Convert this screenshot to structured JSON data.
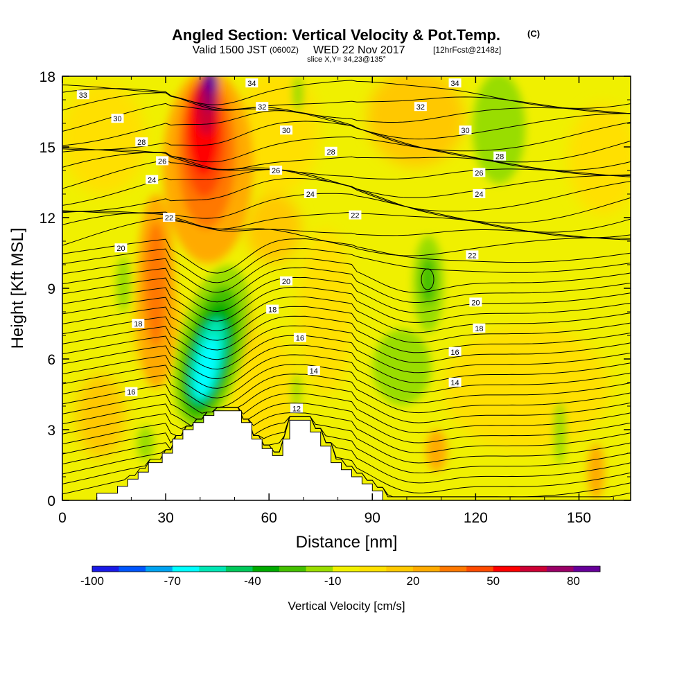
{
  "header": {
    "title": "Angled Section: Vertical Velocity & Pot.Temp.",
    "copyright": "(C)",
    "valid_prefix": "Valid 1500 JST",
    "utc": "(0600Z)",
    "date": "WED 22 Nov 2017",
    "forecast": "[12hrFcst@2148z]",
    "slice": "slice X,Y= 34,23@135°"
  },
  "chart_data": {
    "type": "heatmap",
    "title": "Angled Section: Vertical Velocity & Pot.Temp.",
    "xlabel": "Distance [nm]",
    "ylabel": "Height [Kft MSL]",
    "xlim": [
      0,
      165
    ],
    "ylim": [
      0,
      18
    ],
    "x_ticks": [
      "0",
      "30",
      "60",
      "90",
      "120",
      "150"
    ],
    "y_ticks": [
      "0",
      "3",
      "6",
      "9",
      "12",
      "15",
      "18"
    ],
    "colorbar": {
      "label": "Vertical Velocity [cm/s]",
      "ticks": [
        "-100",
        "-70",
        "-40",
        "-10",
        "20",
        "50",
        "80"
      ],
      "levels": [
        -100,
        -90,
        -80,
        -70,
        -60,
        -50,
        -40,
        -30,
        -20,
        -10,
        0,
        10,
        20,
        30,
        40,
        50,
        60,
        70,
        80,
        90
      ],
      "colors": [
        "#1a1ae6",
        "#0055ff",
        "#00a2f0",
        "#00ffff",
        "#00e6b4",
        "#00c85a",
        "#00aa00",
        "#44c000",
        "#99dd00",
        "#f0f000",
        "#ffe000",
        "#ffc800",
        "#ffaa00",
        "#ff7800",
        "#ff4a00",
        "#ff0000",
        "#cc0033",
        "#990066",
        "#660099"
      ]
    },
    "contours_pot_temp": [
      12,
      14,
      16,
      18,
      20,
      22,
      24,
      26,
      28,
      30,
      32,
      34
    ],
    "contour_labels": [
      {
        "text": "34",
        "x": 55,
        "y": 17.7
      },
      {
        "text": "33",
        "x": 6,
        "y": 17.2
      },
      {
        "text": "32",
        "x": 58,
        "y": 16.7
      },
      {
        "text": "30",
        "x": 16,
        "y": 16.2
      },
      {
        "text": "30",
        "x": 65,
        "y": 15.7
      },
      {
        "text": "28",
        "x": 23,
        "y": 15.2
      },
      {
        "text": "28",
        "x": 78,
        "y": 14.8
      },
      {
        "text": "26",
        "x": 29,
        "y": 14.4
      },
      {
        "text": "26",
        "x": 62,
        "y": 14.0
      },
      {
        "text": "24",
        "x": 26,
        "y": 13.6
      },
      {
        "text": "24",
        "x": 72,
        "y": 13.0
      },
      {
        "text": "22",
        "x": 31,
        "y": 12.0
      },
      {
        "text": "22",
        "x": 85,
        "y": 12.1
      },
      {
        "text": "20",
        "x": 17,
        "y": 10.7
      },
      {
        "text": "20",
        "x": 65,
        "y": 9.3
      },
      {
        "text": "18",
        "x": 22,
        "y": 7.5
      },
      {
        "text": "18",
        "x": 61,
        "y": 8.1
      },
      {
        "text": "16",
        "x": 20,
        "y": 4.6
      },
      {
        "text": "16",
        "x": 69,
        "y": 6.9
      },
      {
        "text": "14",
        "x": 73,
        "y": 5.5
      },
      {
        "text": "12",
        "x": 68,
        "y": 3.9
      },
      {
        "text": "34",
        "x": 114,
        "y": 17.7
      },
      {
        "text": "32",
        "x": 104,
        "y": 16.7
      },
      {
        "text": "30",
        "x": 117,
        "y": 15.7
      },
      {
        "text": "28",
        "x": 127,
        "y": 14.6
      },
      {
        "text": "26",
        "x": 121,
        "y": 13.9
      },
      {
        "text": "24",
        "x": 121,
        "y": 13.0
      },
      {
        "text": "22",
        "x": 119,
        "y": 10.4
      },
      {
        "text": "20",
        "x": 120,
        "y": 8.4
      },
      {
        "text": "18",
        "x": 121,
        "y": 7.3
      },
      {
        "text": "16",
        "x": 114,
        "y": 6.3
      },
      {
        "text": "14",
        "x": 114,
        "y": 5.0
      }
    ],
    "velocity_features": [
      {
        "kind": "updraft",
        "peak": 90,
        "x": 43,
        "y": 16.5
      },
      {
        "kind": "updraft",
        "peak": 50,
        "x": 40,
        "y": 14.5
      },
      {
        "kind": "updraft",
        "peak": 30,
        "x": 28,
        "y": 10
      },
      {
        "kind": "downdraft",
        "peak": -70,
        "x": 44,
        "y": 6
      },
      {
        "kind": "downdraft",
        "peak": -30,
        "x": 107,
        "y": 9.5
      },
      {
        "kind": "downdraft",
        "peak": -10,
        "x": 98,
        "y": 5.5
      },
      {
        "kind": "downdraft",
        "peak": -10,
        "x": 126,
        "y": 16
      }
    ],
    "terrain": [
      [
        0,
        0
      ],
      [
        10,
        0
      ],
      [
        10,
        0.3
      ],
      [
        16,
        0.3
      ],
      [
        16,
        0.6
      ],
      [
        19,
        0.6
      ],
      [
        19,
        0.9
      ],
      [
        22,
        0.9
      ],
      [
        22,
        1.2
      ],
      [
        25,
        1.2
      ],
      [
        25,
        1.6
      ],
      [
        29,
        1.6
      ],
      [
        29,
        2.0
      ],
      [
        32,
        2.0
      ],
      [
        32,
        2.6
      ],
      [
        35,
        2.6
      ],
      [
        35,
        3.0
      ],
      [
        38,
        3.0
      ],
      [
        38,
        3.3
      ],
      [
        41,
        3.3
      ],
      [
        41,
        3.6
      ],
      [
        44,
        3.6
      ],
      [
        44,
        3.8
      ],
      [
        52,
        3.8
      ],
      [
        52,
        3.3
      ],
      [
        55,
        3.3
      ],
      [
        55,
        2.6
      ],
      [
        58,
        2.6
      ],
      [
        58,
        2.2
      ],
      [
        61,
        2.2
      ],
      [
        61,
        1.9
      ],
      [
        64,
        1.9
      ],
      [
        64,
        2.6
      ],
      [
        66,
        2.6
      ],
      [
        66,
        3.4
      ],
      [
        72,
        3.4
      ],
      [
        72,
        2.9
      ],
      [
        75,
        2.9
      ],
      [
        75,
        2.3
      ],
      [
        78,
        2.3
      ],
      [
        78,
        1.6
      ],
      [
        81,
        1.6
      ],
      [
        81,
        1.3
      ],
      [
        84,
        1.3
      ],
      [
        84,
        1.0
      ],
      [
        87,
        1.0
      ],
      [
        87,
        0.7
      ],
      [
        90,
        0.7
      ],
      [
        90,
        0.4
      ],
      [
        93,
        0.4
      ],
      [
        93,
        0
      ],
      [
        165,
        0
      ]
    ]
  }
}
